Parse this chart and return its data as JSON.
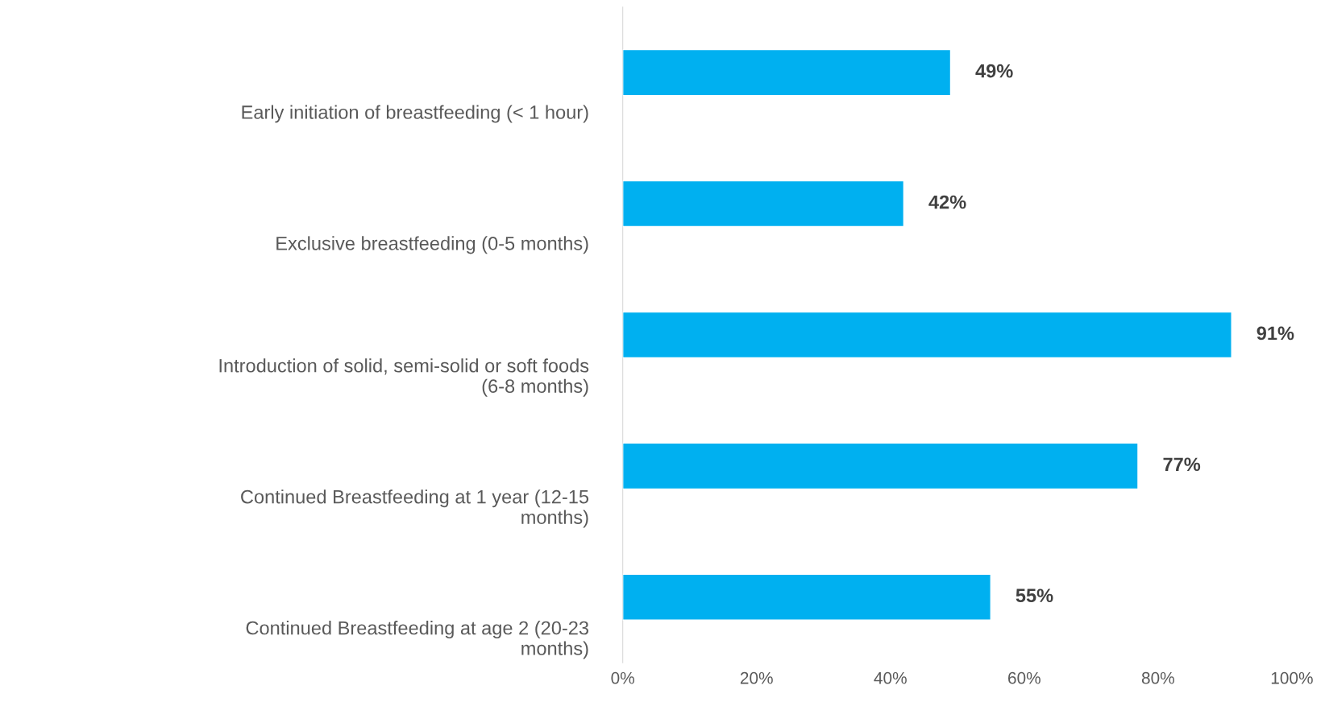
{
  "chart_data": {
    "type": "bar",
    "orientation": "horizontal",
    "categories": [
      "Early initiation of breastfeeding (< 1 hour)",
      "Exclusive breastfeeding (0-5 months)",
      "Introduction of solid, semi-solid or soft foods\n(6-8 months)",
      "Continued Breastfeeding at 1 year (12-15\nmonths)",
      "Continued Breastfeeding at age 2 (20-23\nmonths)"
    ],
    "values": [
      49,
      42,
      91,
      77,
      55
    ],
    "value_labels": [
      "49%",
      "42%",
      "91%",
      "77%",
      "55%"
    ],
    "color": "#00b0f0",
    "xlim": [
      0,
      100
    ],
    "xticks": [
      {
        "value": 0,
        "label": "0%"
      },
      {
        "value": 20,
        "label": "20%"
      },
      {
        "value": 40,
        "label": "40%"
      },
      {
        "value": 60,
        "label": "60%"
      },
      {
        "value": 80,
        "label": "80%"
      },
      {
        "value": 100,
        "label": "100%"
      }
    ],
    "grid": false,
    "legend": false
  }
}
